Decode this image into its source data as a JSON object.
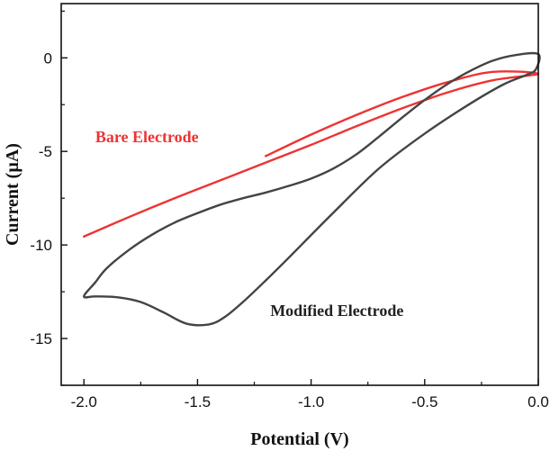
{
  "chart_data": {
    "type": "line",
    "xlabel": "Potential (V)",
    "ylabel": "Current (µA)",
    "xlim": [
      -2.1,
      0.0
    ],
    "ylim": [
      -17.5,
      2.9
    ],
    "xticks": [
      -2.0,
      -1.5,
      -1.0,
      -0.5,
      0.0
    ],
    "xtick_labels": [
      "-2.0",
      "-1.5",
      "-1.0",
      "-0.5",
      "0.0"
    ],
    "yticks": [
      0,
      -5,
      -10,
      -15
    ],
    "ytick_labels": [
      "0",
      "-5",
      "-10",
      "-15"
    ],
    "grid": false,
    "series": [
      {
        "name": "Bare Electrode",
        "color": "#ee3333",
        "closed": false,
        "points": [
          [
            -2.0,
            -9.55
          ],
          [
            -1.8,
            -8.5
          ],
          [
            -1.6,
            -7.5
          ],
          [
            -1.4,
            -6.55
          ],
          [
            -1.2,
            -5.6
          ],
          [
            -1.0,
            -4.65
          ],
          [
            -0.8,
            -3.65
          ],
          [
            -0.6,
            -2.7
          ],
          [
            -0.4,
            -1.85
          ],
          [
            -0.2,
            -1.2
          ],
          [
            0.0,
            -0.85
          ],
          [
            -0.2,
            -0.75
          ],
          [
            -0.4,
            -1.3
          ],
          [
            -0.6,
            -2.1
          ],
          [
            -0.8,
            -3.05
          ],
          [
            -1.0,
            -4.1
          ],
          [
            -1.2,
            -5.25
          ]
        ]
      },
      {
        "name": "Modified Electrode",
        "color": "#444444",
        "closed": true,
        "points": [
          [
            -2.0,
            -12.75
          ],
          [
            -1.95,
            -12.0
          ],
          [
            -1.9,
            -11.25
          ],
          [
            -1.8,
            -10.25
          ],
          [
            -1.7,
            -9.45
          ],
          [
            -1.6,
            -8.8
          ],
          [
            -1.5,
            -8.3
          ],
          [
            -1.4,
            -7.85
          ],
          [
            -1.3,
            -7.5
          ],
          [
            -1.2,
            -7.2
          ],
          [
            -1.1,
            -6.85
          ],
          [
            -1.0,
            -6.45
          ],
          [
            -0.9,
            -5.9
          ],
          [
            -0.8,
            -5.15
          ],
          [
            -0.7,
            -4.2
          ],
          [
            -0.6,
            -3.2
          ],
          [
            -0.5,
            -2.25
          ],
          [
            -0.4,
            -1.4
          ],
          [
            -0.3,
            -0.7
          ],
          [
            -0.2,
            -0.15
          ],
          [
            -0.1,
            0.15
          ],
          [
            0.0,
            0.2
          ],
          [
            -0.01,
            -0.6
          ],
          [
            -0.05,
            -0.9
          ],
          [
            -0.15,
            -1.4
          ],
          [
            -0.3,
            -2.45
          ],
          [
            -0.5,
            -4.05
          ],
          [
            -0.7,
            -5.9
          ],
          [
            -0.9,
            -8.25
          ],
          [
            -1.1,
            -10.7
          ],
          [
            -1.2,
            -11.9
          ],
          [
            -1.3,
            -13.05
          ],
          [
            -1.38,
            -13.85
          ],
          [
            -1.45,
            -14.25
          ],
          [
            -1.55,
            -14.2
          ],
          [
            -1.65,
            -13.6
          ],
          [
            -1.75,
            -13.05
          ],
          [
            -1.85,
            -12.8
          ],
          [
            -1.95,
            -12.75
          ]
        ]
      }
    ],
    "annotations": [
      {
        "text": "Bare Electrode",
        "x": -1.95,
        "y": -4.5,
        "color": "#ee3333"
      },
      {
        "text": "Modified Electrode",
        "x": -1.18,
        "y": -13.8,
        "color": "#222222"
      }
    ]
  }
}
